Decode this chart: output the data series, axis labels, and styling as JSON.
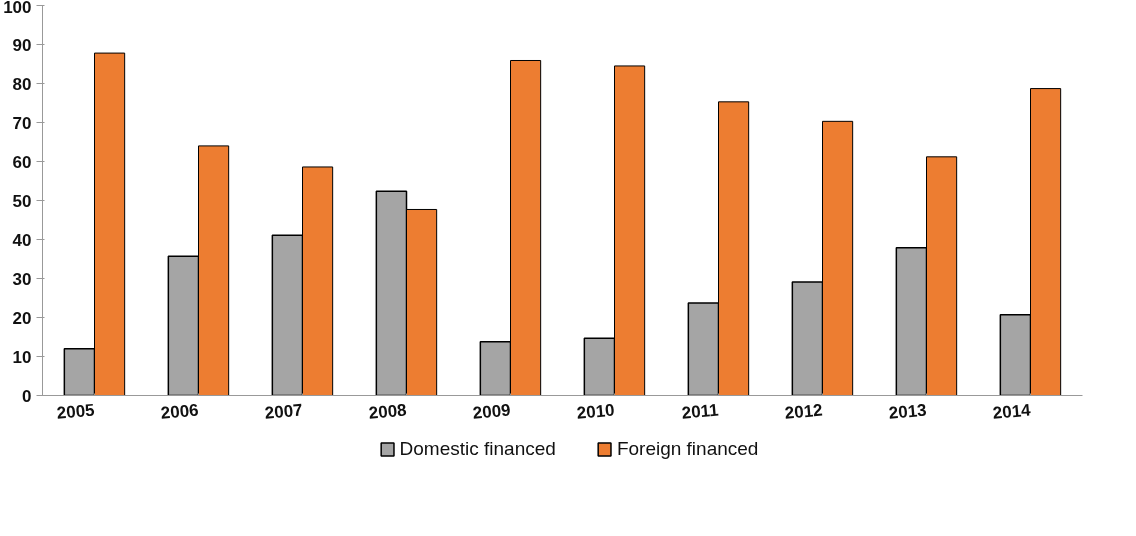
{
  "chart_data": {
    "type": "bar",
    "categories": [
      "2005",
      "2006",
      "2007",
      "2008",
      "2009",
      "2010",
      "2011",
      "2012",
      "2013",
      "2014"
    ],
    "series": [
      {
        "name": "Domestic financed",
        "color": "#a5a5a5",
        "values": [
          12,
          35.7,
          41.1,
          52.4,
          13.8,
          14.7,
          23.7,
          29.1,
          37.9,
          20.7
        ]
      },
      {
        "name": "Foreign financed",
        "color": "#ed7d31",
        "values": [
          87.8,
          64,
          58.6,
          47.7,
          85.9,
          84.5,
          75.3,
          70.3,
          61.2,
          78.7
        ]
      }
    ],
    "ylim": [
      0,
      100
    ],
    "yticks": [
      0,
      10,
      20,
      30,
      40,
      50,
      60,
      70,
      80,
      90,
      100
    ],
    "grid": false,
    "legend": "bottom"
  }
}
